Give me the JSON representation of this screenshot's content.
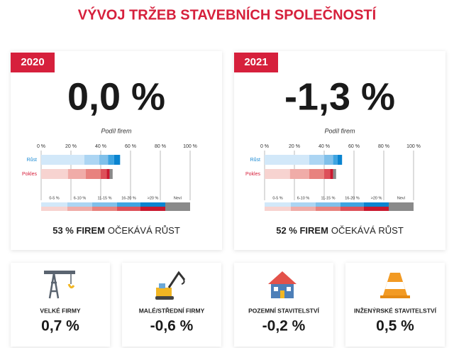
{
  "title": "VÝVOJ TRŽEB STAVEBNÍCH SPOLEČNOSTÍ",
  "legend": [
    "0-5 %",
    "6-10 %",
    "11-15 %",
    "16-20 %",
    ">20 %",
    "Neví"
  ],
  "colors": {
    "Růst": [
      "#d2e8f9",
      "#acd5f3",
      "#80c0ea",
      "#3ea4e1",
      "#0a84d0",
      "#8a8a8a"
    ],
    "Pokles": [
      "#f7d3d0",
      "#f0aca8",
      "#e8827e",
      "#dd5059",
      "#c9182f",
      "#8a8a8a"
    ]
  },
  "panels": [
    {
      "year": "2020",
      "value": "0,0 %",
      "axis_label": "Podíl firem",
      "xlim": [
        0,
        100
      ],
      "xticks": [
        {
          "value": 0,
          "label": "0 %"
        },
        {
          "value": 20,
          "label": "20 %"
        },
        {
          "value": 40,
          "label": "40 %"
        },
        {
          "value": 60,
          "label": "60 %"
        },
        {
          "value": 80,
          "label": "80 %"
        },
        {
          "value": 100,
          "label": "100 %"
        }
      ],
      "series": [
        {
          "name": "Růst",
          "values": [
            29,
            10,
            6,
            4,
            4
          ]
        },
        {
          "name": "Pokles",
          "values": [
            18,
            12,
            10,
            4,
            2,
            2
          ]
        }
      ],
      "summary_bold": "53 % FIREM",
      "summary_rest": "OČEKÁVÁ RŮST"
    },
    {
      "year": "2021",
      "value": "-1,3 %",
      "axis_label": "Podíl firem",
      "xlim": [
        0,
        100
      ],
      "xticks": [
        {
          "value": 0,
          "label": "0 %"
        },
        {
          "value": 20,
          "label": "20 %"
        },
        {
          "value": 40,
          "label": "40 %"
        },
        {
          "value": 60,
          "label": "60 %"
        },
        {
          "value": 80,
          "label": "80 %"
        },
        {
          "value": 100,
          "label": "100 %"
        }
      ],
      "series": [
        {
          "name": "Růst",
          "values": [
            30,
            10,
            6,
            3,
            3
          ]
        },
        {
          "name": "Pokles",
          "values": [
            17,
            13,
            10,
            4,
            2,
            2
          ]
        }
      ],
      "summary_bold": "52 % FIREM",
      "summary_rest": "OČEKÁVÁ RŮST"
    }
  ],
  "sectors": [
    {
      "label": "VELKÉ FIRMY",
      "value": "0,7 %"
    },
    {
      "label": "MALÉ/STŘEDNÍ FIRMY",
      "value": "-0,6 %"
    },
    {
      "label": "POZEMNÍ STAVITELSTVÍ",
      "value": "-0,2 %"
    },
    {
      "label": "INŽENÝRSKÉ STAVITELSTVÍ",
      "value": "0,5 %"
    }
  ]
}
